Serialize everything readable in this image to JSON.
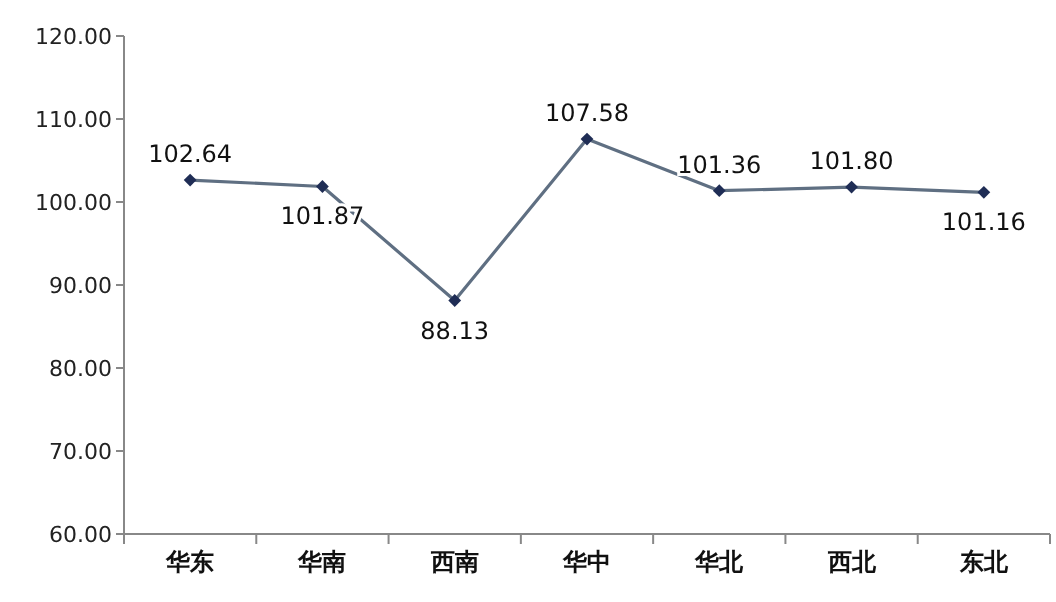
{
  "chart_data": {
    "type": "line",
    "categories": [
      "华东",
      "华南",
      "西南",
      "华中",
      "华北",
      "西北",
      "东北"
    ],
    "series": [
      {
        "color": "#5f6f82",
        "values": [
          102.64,
          101.87,
          88.13,
          107.58,
          101.36,
          101.8,
          101.16
        ]
      }
    ],
    "ylim": [
      60,
      120
    ],
    "yticks": [
      {
        "value": 60,
        "label": "60.00"
      },
      {
        "value": 70,
        "label": "70.00"
      },
      {
        "value": 80,
        "label": "80.00"
      },
      {
        "value": 90,
        "label": "90.00"
      },
      {
        "value": 100,
        "label": "100.00"
      },
      {
        "value": 110,
        "label": "110.00"
      },
      {
        "value": 120,
        "label": "120.00"
      }
    ],
    "value_labels": [
      "102.64",
      "101.87",
      "88.13",
      "107.58",
      "101.36",
      "101.80",
      "101.16"
    ],
    "marker": "diamond",
    "line_style": "solid",
    "grid": false
  }
}
